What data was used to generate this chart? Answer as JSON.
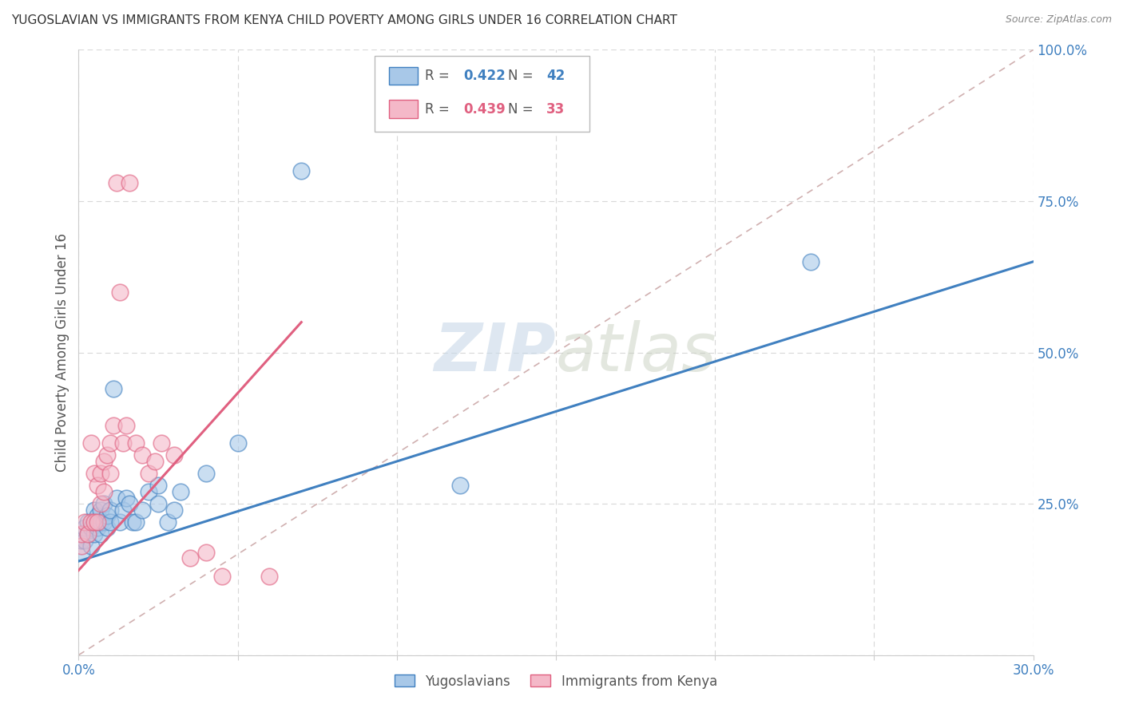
{
  "title": "YUGOSLAVIAN VS IMMIGRANTS FROM KENYA CHILD POVERTY AMONG GIRLS UNDER 16 CORRELATION CHART",
  "source": "Source: ZipAtlas.com",
  "ylabel": "Child Poverty Among Girls Under 16",
  "xlim": [
    0.0,
    0.3
  ],
  "ylim": [
    0.0,
    1.0
  ],
  "legend_r1": "0.422",
  "legend_n1": "42",
  "legend_r2": "0.439",
  "legend_n2": "33",
  "color_blue": "#a8c8e8",
  "color_pink": "#f4b8c8",
  "line_blue": "#4080c0",
  "line_pink": "#e06080",
  "line_diag": "#d0b0b0",
  "watermark_zip": "ZIP",
  "watermark_atlas": "atlas",
  "blue_x": [
    0.001,
    0.001,
    0.002,
    0.002,
    0.003,
    0.003,
    0.004,
    0.004,
    0.005,
    0.005,
    0.005,
    0.006,
    0.006,
    0.007,
    0.007,
    0.007,
    0.008,
    0.008,
    0.009,
    0.009,
    0.01,
    0.01,
    0.011,
    0.012,
    0.013,
    0.014,
    0.015,
    0.016,
    0.017,
    0.018,
    0.02,
    0.022,
    0.025,
    0.025,
    0.028,
    0.03,
    0.032,
    0.04,
    0.05,
    0.07,
    0.12,
    0.23
  ],
  "blue_y": [
    0.17,
    0.19,
    0.19,
    0.21,
    0.2,
    0.22,
    0.18,
    0.21,
    0.2,
    0.22,
    0.24,
    0.21,
    0.23,
    0.2,
    0.22,
    0.24,
    0.22,
    0.25,
    0.21,
    0.23,
    0.22,
    0.24,
    0.44,
    0.26,
    0.22,
    0.24,
    0.26,
    0.25,
    0.22,
    0.22,
    0.24,
    0.27,
    0.25,
    0.28,
    0.22,
    0.24,
    0.27,
    0.3,
    0.35,
    0.8,
    0.28,
    0.65
  ],
  "pink_x": [
    0.001,
    0.001,
    0.002,
    0.003,
    0.004,
    0.004,
    0.005,
    0.005,
    0.006,
    0.006,
    0.007,
    0.007,
    0.008,
    0.008,
    0.009,
    0.01,
    0.01,
    0.011,
    0.012,
    0.013,
    0.014,
    0.015,
    0.016,
    0.018,
    0.02,
    0.022,
    0.024,
    0.026,
    0.03,
    0.035,
    0.04,
    0.045,
    0.06
  ],
  "pink_y": [
    0.18,
    0.2,
    0.22,
    0.2,
    0.22,
    0.35,
    0.22,
    0.3,
    0.22,
    0.28,
    0.25,
    0.3,
    0.27,
    0.32,
    0.33,
    0.3,
    0.35,
    0.38,
    0.78,
    0.6,
    0.35,
    0.38,
    0.78,
    0.35,
    0.33,
    0.3,
    0.32,
    0.35,
    0.33,
    0.16,
    0.17,
    0.13,
    0.13
  ]
}
